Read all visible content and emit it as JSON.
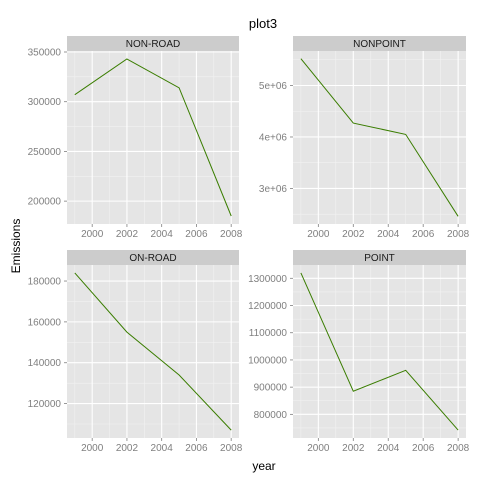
{
  "chart_data": {
    "type": "line",
    "title": "plot3",
    "xlabel": "year",
    "ylabel": "Emissions",
    "facets": [
      {
        "label": "NON-ROAD",
        "x": [
          1999,
          2002,
          2005,
          2008
        ],
        "y": [
          307000,
          343000,
          314000,
          185000
        ],
        "xlim": [
          1998.55,
          2008.45
        ],
        "ylim": [
          177000,
          351000
        ],
        "yticks": [
          200000,
          250000,
          300000,
          350000
        ],
        "ytick_labels": [
          "200000",
          "250000",
          "300000",
          "350000"
        ]
      },
      {
        "label": "NONPOINT",
        "x": [
          1999,
          2002,
          2005,
          2008
        ],
        "y": [
          5520000,
          4270000,
          4050000,
          2460000
        ],
        "xlim": [
          1998.55,
          2008.45
        ],
        "ylim": [
          2310000,
          5670000
        ],
        "yticks": [
          3000000,
          4000000,
          5000000
        ],
        "ytick_labels": [
          "3e+06",
          "4e+06",
          "5e+06"
        ]
      },
      {
        "label": "ON-ROAD",
        "x": [
          1999,
          2002,
          2005,
          2008
        ],
        "y": [
          184000,
          155000,
          134000,
          107000
        ],
        "xlim": [
          1998.55,
          2008.45
        ],
        "ylim": [
          103150,
          187850
        ],
        "yticks": [
          120000,
          140000,
          160000,
          180000
        ],
        "ytick_labels": [
          "120000",
          "140000",
          "160000",
          "180000"
        ]
      },
      {
        "label": "POINT",
        "x": [
          1999,
          2002,
          2005,
          2008
        ],
        "y": [
          1320000,
          885000,
          962000,
          742000
        ],
        "xlim": [
          1998.55,
          2008.45
        ],
        "ylim": [
          713100,
          1348900
        ],
        "yticks": [
          800000,
          900000,
          1000000,
          1100000,
          1200000,
          1300000
        ],
        "ytick_labels": [
          "800000",
          "900000",
          "1000000",
          "1100000",
          "1200000",
          "1300000"
        ]
      }
    ],
    "xticks": [
      2000,
      2002,
      2004,
      2006,
      2008
    ],
    "xtick_labels": [
      "2000",
      "2002",
      "2004",
      "2006",
      "2008"
    ],
    "grid": true,
    "line_color": "#3a7d00",
    "panel_background": "#e5e5e5",
    "strip_background": "#cccccc"
  }
}
